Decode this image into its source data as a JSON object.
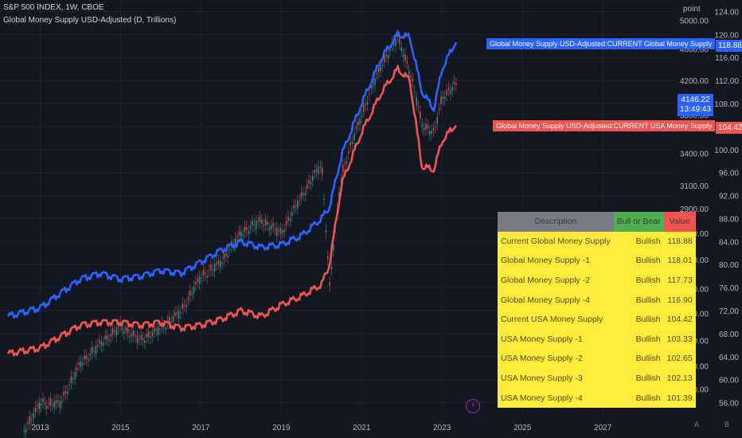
{
  "header": {
    "symbol": "S&P 500 INDEX, 1W, CBOE",
    "indicator": "Global Money Supply USD-Adjusted (D, Trillions)"
  },
  "colors": {
    "background": "#131722",
    "global": "#2962ff",
    "usa": "#f05350",
    "grid": "#1e222d",
    "up": "#26a69a",
    "down": "#ef5350"
  },
  "axis": {
    "right_unit": "point",
    "right_ticks": [
      "124.00",
      "120.00",
      "116.00",
      "112.00",
      "108.00",
      "104.00",
      "100.00",
      "96.00",
      "92.00",
      "88.00",
      "84.00",
      "80.00",
      "76.00",
      "72.00",
      "68.00",
      "64.00",
      "60.00",
      "56.00"
    ],
    "left_ticks": [
      "5000.00",
      "4600.00",
      "4200.00",
      "3800.00",
      "3400.00",
      "3100.00",
      "2900.00",
      "2700.00",
      "2500.00",
      "2300.00",
      "2140.00",
      "1980.00",
      "1840.00",
      "1720.00"
    ],
    "x_ticks": [
      "2013",
      "2015",
      "2017",
      "2019",
      "2021",
      "2023",
      "2025",
      "2027"
    ]
  },
  "labels": {
    "global": "Global Money Supply USD-Adjusted:CURRENT Global Money Supply",
    "usa": "Global Money Supply USD-Adjusted:CURRENT USA Money Supply",
    "global_value": "118.88",
    "usa_value": "104.42",
    "spx_value": "4146.22",
    "spx_time": "13:49:43"
  },
  "table": {
    "headers": [
      "Description",
      "Bull or Bear",
      "Value"
    ],
    "rows": [
      [
        "Current Global Money Supply",
        "Bullish",
        "118.88"
      ],
      [
        "Global Money Supply -1",
        "Bullish",
        "118.01"
      ],
      [
        "Global Money Supply -2",
        "Bullish",
        "117.73"
      ],
      [
        "Global Money Supply -4",
        "Bullish",
        "116.90"
      ],
      [
        "Current USA Money Supply",
        "Bullish",
        "104.42"
      ],
      [
        "USA Money Supply -1",
        "Bullish",
        "103.33"
      ],
      [
        "USA Money Supply -2",
        "Bullish",
        "102.65"
      ],
      [
        "USA Money Supply -3",
        "Bullish",
        "102.13"
      ],
      [
        "USA Money Supply -4",
        "Bullish",
        "101.39"
      ]
    ]
  },
  "corner": {
    "a": "A",
    "b": "B"
  },
  "chart_data": {
    "type": "line",
    "x": [
      2012.2,
      2013,
      2013.5,
      2014,
      2014.5,
      2015,
      2015.5,
      2016,
      2016.5,
      2017,
      2017.5,
      2018,
      2018.5,
      2019,
      2019.5,
      2020,
      2020.2,
      2020.5,
      2021,
      2021.5,
      2021.9,
      2022.2,
      2022.5,
      2022.8,
      2023,
      2023.35
    ],
    "series": [
      {
        "name": "CURRENT Global Money Supply",
        "values": [
          71.0,
          72.5,
          75.0,
          77.5,
          78.5,
          77.5,
          78.0,
          79.0,
          78.5,
          80.5,
          82.5,
          84.0,
          83.0,
          83.5,
          85.0,
          88.0,
          90.0,
          99.0,
          108.0,
          116.0,
          120.0,
          119.5,
          110.0,
          107.0,
          114.0,
          118.88
        ]
      },
      {
        "name": "CURRENT USA Money Supply",
        "values": [
          64.5,
          65.5,
          67.5,
          69.5,
          70.0,
          70.0,
          69.5,
          70.0,
          69.0,
          69.5,
          70.5,
          72.0,
          71.0,
          73.0,
          74.5,
          76.5,
          80.0,
          94.0,
          103.0,
          110.0,
          114.0,
          112.0,
          97.0,
          96.5,
          101.5,
          104.42
        ]
      },
      {
        "name": "S&P 500 INDEX",
        "values": [
          1400,
          1650,
          1650,
          1850,
          1960,
          2060,
          1980,
          2050,
          2150,
          2380,
          2480,
          2700,
          2800,
          2700,
          3000,
          3300,
          2300,
          3200,
          3800,
          4400,
          4750,
          4300,
          3700,
          3600,
          4000,
          4146.22
        ]
      }
    ],
    "right_axis_ylim": [
      54,
      126
    ],
    "left_axis_ylim": [
      1600,
      5300
    ],
    "left_axis": "log",
    "xlim": [
      2012.0,
      2028.8
    ],
    "grid": true
  }
}
